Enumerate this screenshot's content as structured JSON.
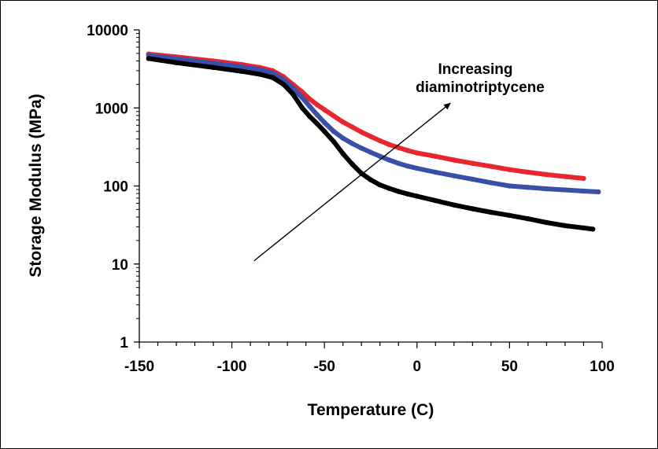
{
  "chart_data": {
    "type": "line",
    "title": "",
    "xlabel": "Temperature (C)",
    "ylabel": "Storage Modulus (MPa)",
    "xlim": [
      -150,
      100
    ],
    "ylim": [
      1,
      10000
    ],
    "yscale": "log",
    "x_ticks": [
      -150,
      -100,
      -50,
      0,
      50,
      100
    ],
    "y_ticks": [
      1,
      10,
      100,
      1000,
      10000
    ],
    "grid": false,
    "legend": "none",
    "annotation": {
      "text_lines": [
        "Increasing",
        "diaminotriptycene"
      ],
      "arrow_from": {
        "x": -88,
        "y": 11
      },
      "arrow_to": {
        "x": 18,
        "y": 1150
      }
    },
    "series": [
      {
        "color": "#e8262e",
        "x": [
          -145,
          -130,
          -110,
          -95,
          -85,
          -78,
          -72,
          -67,
          -62,
          -58,
          -54,
          -50,
          -45,
          -40,
          -35,
          -30,
          -25,
          -20,
          -15,
          -10,
          -5,
          0,
          10,
          20,
          30,
          40,
          50,
          60,
          70,
          80,
          90
        ],
        "y": [
          4900,
          4500,
          4000,
          3600,
          3300,
          3000,
          2500,
          2000,
          1600,
          1300,
          1100,
          950,
          790,
          660,
          570,
          490,
          430,
          380,
          340,
          310,
          285,
          265,
          240,
          215,
          195,
          178,
          162,
          150,
          140,
          132,
          125
        ]
      },
      {
        "color": "#3a4fa8",
        "x": [
          -145,
          -130,
          -110,
          -95,
          -85,
          -78,
          -72,
          -67,
          -62,
          -58,
          -54,
          -50,
          -45,
          -40,
          -35,
          -30,
          -25,
          -20,
          -15,
          -10,
          -5,
          0,
          10,
          20,
          30,
          40,
          50,
          60,
          70,
          80,
          90,
          98
        ],
        "y": [
          4700,
          4250,
          3750,
          3350,
          3100,
          2800,
          2300,
          1800,
          1350,
          1050,
          820,
          650,
          500,
          410,
          350,
          305,
          270,
          240,
          215,
          195,
          180,
          168,
          150,
          135,
          122,
          110,
          100,
          96,
          92,
          89,
          86,
          84
        ]
      },
      {
        "color": "#000000",
        "x": [
          -145,
          -130,
          -110,
          -95,
          -85,
          -78,
          -72,
          -67,
          -62,
          -58,
          -54,
          -50,
          -45,
          -40,
          -35,
          -30,
          -25,
          -20,
          -15,
          -10,
          -5,
          0,
          10,
          20,
          30,
          40,
          50,
          60,
          70,
          80,
          90,
          95
        ],
        "y": [
          4300,
          3800,
          3300,
          2950,
          2700,
          2450,
          2000,
          1500,
          1000,
          780,
          630,
          500,
          370,
          260,
          190,
          145,
          120,
          103,
          93,
          85,
          79,
          74,
          65,
          57,
          51,
          46,
          42,
          38,
          34,
          31,
          29,
          28
        ]
      }
    ]
  }
}
